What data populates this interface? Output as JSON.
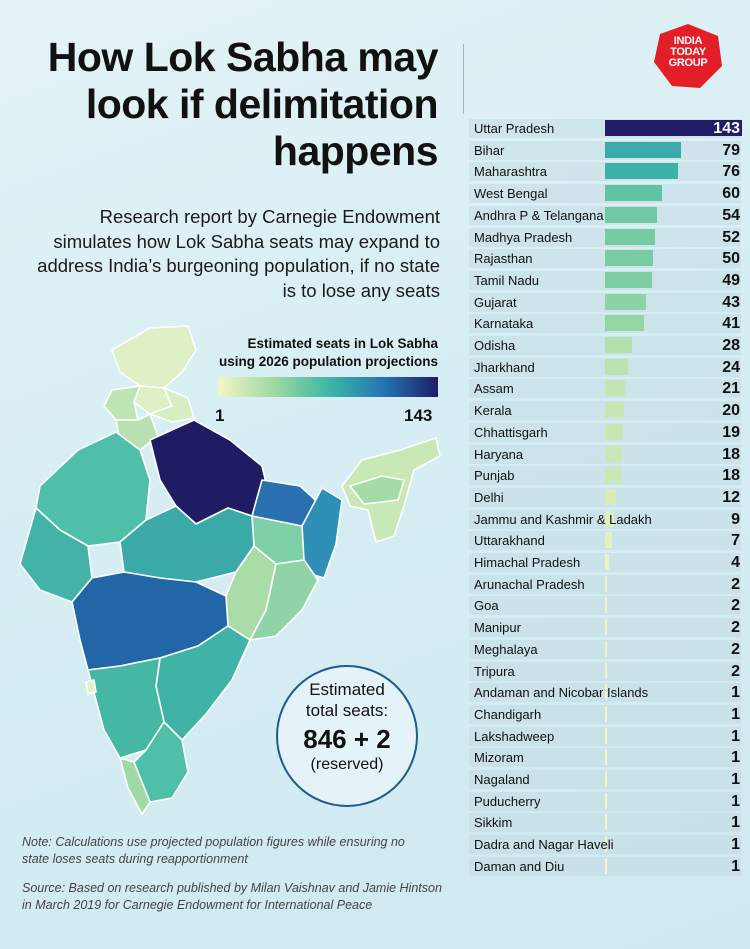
{
  "header": {
    "title": "How Lok Sabha may look if delimitation happens",
    "subtitle": "Research report by Carnegie Endowment simulates how Lok Sabha seats may expand to address India’s burgeoning population, if no state is to lose any seats"
  },
  "logo": {
    "text_line1": "INDIA",
    "text_line2": "TODAY",
    "text_line3": "GROUP",
    "color": "#e41e26"
  },
  "legend": {
    "title_line1": "Estimated seats in Lok Sabha",
    "title_line2": "using 2026 population projections",
    "min_label": "1",
    "max_label": "143"
  },
  "total": {
    "label_line1": "Estimated",
    "label_line2": "total seats:",
    "value": "846 + 2",
    "note": "(reserved)"
  },
  "footer": {
    "note_line1": "Note: Calculations use projected population figures while ensuring no",
    "note_line2": "state loses seats during reapportionment",
    "source_line1": "Source: Based on research published by Milan Vaishnav and Jamie Hintson",
    "source_line2": "in March 2019 for Carnegie Endowment for International Peace"
  },
  "chart_data": {
    "type": "bar",
    "orientation": "horizontal",
    "xlim": [
      0,
      143
    ],
    "categories": [
      "Uttar Pradesh",
      "Bihar",
      "Maharashtra",
      "West Bengal",
      "Andhra P & Telangana",
      "Madhya Pradesh",
      "Rajasthan",
      "Tamil Nadu",
      "Gujarat",
      "Karnataka",
      "Odisha",
      "Jharkhand",
      "Assam",
      "Kerala",
      "Chhattisgarh",
      "Haryana",
      "Punjab",
      "Delhi",
      "Jammu and Kashmir & Ladakh",
      "Uttarakhand",
      "Himachal Pradesh",
      "Arunachal Pradesh",
      "Goa",
      "Manipur",
      "Meghalaya",
      "Tripura",
      "Andaman and Nicobar Islands",
      "Chandigarh",
      "Lakshadweep",
      "Mizoram",
      "Nagaland",
      "Puducherry",
      "Sikkim",
      "Dadra and Nagar Haveli",
      "Daman and Diu"
    ],
    "values": [
      143,
      79,
      76,
      60,
      54,
      52,
      50,
      49,
      43,
      41,
      28,
      24,
      21,
      20,
      19,
      18,
      18,
      12,
      9,
      7,
      4,
      2,
      2,
      2,
      2,
      2,
      1,
      1,
      1,
      1,
      1,
      1,
      1,
      1,
      1
    ],
    "color_scale": [
      "#f2f6c8",
      "#9fd9a2",
      "#3fb8a6",
      "#2376b4",
      "#201d66"
    ]
  }
}
